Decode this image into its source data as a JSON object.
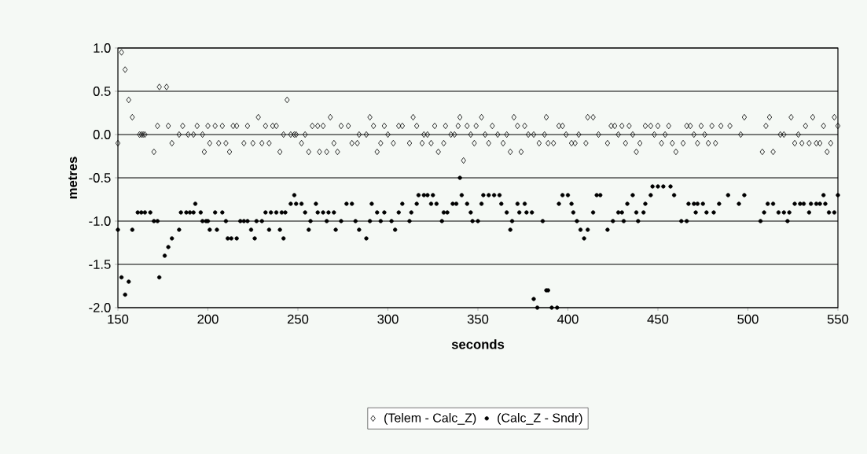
{
  "chart_data": {
    "type": "scatter",
    "xlabel": "seconds",
    "ylabel": "metres",
    "xlim": [
      150,
      550
    ],
    "xticks": [
      150,
      200,
      250,
      300,
      350,
      400,
      450,
      500,
      550
    ],
    "ylim": [
      -2.0,
      1.0
    ],
    "yticks": [
      {
        "value": -2.0,
        "label": "-2.0"
      },
      {
        "value": -1.5,
        "label": "-1.5"
      },
      {
        "value": -1.0,
        "label": "-1.0"
      },
      {
        "value": -0.5,
        "label": "-0.5"
      },
      {
        "value": 0.0,
        "label": "0.0"
      },
      {
        "value": 0.5,
        "label": "0.5"
      },
      {
        "value": 1.0,
        "label": "1.0"
      }
    ],
    "grid": "y",
    "legend": "bottom",
    "series": [
      {
        "name": "(Telem - Calc_Z)",
        "color": "#000000",
        "marker": "diamond",
        "x": [
          150,
          152,
          154,
          156,
          158,
          162,
          163,
          164,
          165,
          170,
          172,
          173,
          177,
          178,
          180,
          184,
          186,
          189,
          192,
          194,
          197,
          198,
          200,
          201,
          204,
          206,
          208,
          210,
          212,
          214,
          216,
          220,
          222,
          225,
          228,
          230,
          232,
          234,
          236,
          238,
          240,
          242,
          244,
          246,
          248,
          249,
          252,
          254,
          256,
          258,
          261,
          262,
          264,
          266,
          268,
          270,
          272,
          274,
          278,
          280,
          283,
          284,
          288,
          290,
          292,
          294,
          296,
          298,
          300,
          303,
          306,
          308,
          312,
          314,
          316,
          319,
          320,
          322,
          324,
          326,
          328,
          331,
          332,
          335,
          337,
          339,
          340,
          342,
          344,
          346,
          348,
          349,
          352,
          354,
          356,
          358,
          361,
          364,
          366,
          368,
          370,
          372,
          374,
          376,
          378,
          381,
          384,
          387,
          388,
          389,
          392,
          395,
          397,
          399,
          402,
          404,
          406,
          410,
          411,
          414,
          417,
          422,
          424,
          426,
          428,
          430,
          432,
          434,
          436,
          438,
          440,
          443,
          446,
          448,
          450,
          452,
          454,
          456,
          458,
          460,
          464,
          466,
          468,
          470,
          472,
          474,
          476,
          478,
          480,
          482,
          485,
          490,
          496,
          498,
          508,
          510,
          512,
          514,
          518,
          520,
          524,
          526,
          528,
          530,
          532,
          534,
          536,
          538,
          540,
          542,
          544,
          546,
          548,
          550
        ],
        "values": [
          -0.1,
          0.95,
          0.75,
          0.4,
          0.2,
          0,
          0,
          0,
          0,
          -0.2,
          0.1,
          0.55,
          0.55,
          0.1,
          -0.1,
          0,
          0.1,
          0,
          0,
          0.1,
          0,
          -0.2,
          0.1,
          -0.1,
          0.1,
          -0.1,
          0.1,
          -0.1,
          -0.2,
          0.1,
          0.1,
          -0.1,
          0.1,
          -0.1,
          0.2,
          -0.1,
          0.1,
          -0.1,
          0.1,
          0.1,
          -0.2,
          0,
          0.4,
          0,
          0,
          0,
          -0.1,
          0,
          -0.2,
          0.1,
          0.1,
          -0.2,
          0.1,
          -0.2,
          0.2,
          -0.1,
          -0.2,
          0.1,
          0.1,
          -0.1,
          -0.1,
          0,
          0,
          0.2,
          0.1,
          -0.2,
          -0.1,
          0.1,
          0,
          -0.1,
          0.1,
          0.1,
          -0.1,
          0.2,
          0.1,
          -0.1,
          0,
          0,
          -0.1,
          0.1,
          -0.2,
          -0.1,
          0.1,
          0,
          0,
          0.1,
          0.2,
          -0.3,
          0.1,
          0,
          -0.1,
          0.1,
          0.2,
          0,
          -0.1,
          0.1,
          0,
          -0.1,
          0,
          -0.2,
          0.2,
          0.1,
          -0.2,
          0.1,
          0,
          0,
          -0.1,
          0,
          0.2,
          -0.1,
          -0.1,
          0.1,
          0.1,
          0,
          -0.1,
          -0.1,
          0,
          -0.1,
          0.2,
          0.2,
          0,
          -0.1,
          0.1,
          0.1,
          0,
          0.1,
          -0.1,
          0.1,
          0,
          -0.2,
          -0.1,
          0.1,
          0.1,
          0,
          0.1,
          -0.1,
          0,
          0.1,
          -0.1,
          -0.2,
          -0.1,
          0.1,
          0.1,
          0,
          -0.1,
          0.1,
          0,
          -0.1,
          0.1,
          -0.1,
          0.1,
          0.1,
          0,
          0.2,
          -0.2,
          0.1,
          0.2,
          -0.2,
          0,
          0,
          0.2,
          -0.1,
          0,
          -0.1,
          0.1,
          -0.1,
          0.2,
          -0.1,
          -0.1,
          0.1,
          -0.2,
          -0.1,
          0.2,
          0.1
        ]
      },
      {
        "name": "(Calc_Z - Sndr)",
        "color": "#000000",
        "marker": "circle",
        "x": [
          150,
          152,
          154,
          156,
          158,
          161,
          163,
          165,
          168,
          170,
          172,
          173,
          176,
          178,
          180,
          184,
          185,
          188,
          190,
          192,
          193,
          196,
          197,
          199,
          200,
          201,
          204,
          205,
          208,
          210,
          211,
          213,
          216,
          218,
          220,
          222,
          224,
          226,
          227,
          230,
          232,
          234,
          235,
          238,
          240,
          241,
          242,
          243,
          246,
          248,
          249,
          252,
          254,
          256,
          257,
          260,
          261,
          264,
          266,
          267,
          270,
          271,
          274,
          277,
          280,
          282,
          284,
          288,
          290,
          291,
          294,
          296,
          298,
          302,
          304,
          306,
          308,
          312,
          313,
          316,
          317,
          320,
          322,
          324,
          325,
          327,
          330,
          331,
          333,
          336,
          338,
          340,
          341,
          344,
          346,
          347,
          350,
          352,
          353,
          356,
          359,
          362,
          363,
          366,
          368,
          369,
          372,
          373,
          376,
          377,
          380,
          381,
          383,
          386,
          388,
          389,
          391,
          394,
          395,
          397,
          400,
          402,
          403,
          405,
          407,
          409,
          411,
          414,
          416,
          418,
          422,
          425,
          428,
          430,
          431,
          433,
          436,
          438,
          439,
          442,
          443,
          446,
          447,
          450,
          453,
          457,
          459,
          463,
          466,
          467,
          470,
          471,
          472,
          475,
          477,
          481,
          484,
          489,
          495,
          498,
          507,
          509,
          511,
          514,
          517,
          520,
          522,
          523,
          526,
          529,
          531,
          534,
          535,
          538,
          540,
          542,
          543,
          545,
          548,
          550
        ],
        "values": [
          -1.1,
          -1.65,
          -1.85,
          -1.7,
          -1.1,
          -0.9,
          -0.9,
          -0.9,
          -0.9,
          -1.0,
          -1.0,
          -1.65,
          -1.4,
          -1.3,
          -1.2,
          -1.1,
          -0.9,
          -0.9,
          -0.9,
          -0.9,
          -0.8,
          -0.9,
          -1.0,
          -1.0,
          -1.0,
          -1.1,
          -0.9,
          -1.1,
          -0.9,
          -1.0,
          -1.2,
          -1.2,
          -1.2,
          -1.0,
          -1.0,
          -1.0,
          -1.1,
          -1.2,
          -1.0,
          -1.0,
          -0.9,
          -1.1,
          -0.9,
          -0.9,
          -1.1,
          -0.9,
          -1.2,
          -0.9,
          -0.8,
          -0.7,
          -0.8,
          -0.8,
          -0.9,
          -1.1,
          -1.0,
          -0.8,
          -0.9,
          -0.9,
          -1.0,
          -0.9,
          -0.9,
          -1.1,
          -1.0,
          -0.8,
          -0.8,
          -1.0,
          -1.1,
          -1.2,
          -1.0,
          -0.8,
          -0.9,
          -1.0,
          -0.9,
          -1.0,
          -1.1,
          -0.9,
          -0.8,
          -1.0,
          -0.9,
          -0.8,
          -0.7,
          -0.7,
          -0.7,
          -0.8,
          -0.7,
          -0.8,
          -1.0,
          -0.9,
          -0.9,
          -0.8,
          -0.8,
          -0.5,
          -0.7,
          -0.8,
          -0.9,
          -1.0,
          -1.0,
          -0.8,
          -0.7,
          -0.7,
          -0.7,
          -0.7,
          -0.8,
          -0.9,
          -1.1,
          -1.0,
          -0.8,
          -0.9,
          -0.8,
          -0.9,
          -0.9,
          -1.9,
          -2.0,
          -1.0,
          -1.8,
          -1.8,
          -2.0,
          -2.0,
          -0.8,
          -0.7,
          -0.7,
          -0.8,
          -0.9,
          -1.0,
          -1.1,
          -1.2,
          -1.1,
          -0.9,
          -0.7,
          -0.7,
          -1.1,
          -1.0,
          -0.9,
          -0.9,
          -1.0,
          -0.8,
          -0.7,
          -0.9,
          -1.0,
          -0.9,
          -0.8,
          -0.7,
          -0.6,
          -0.6,
          -0.6,
          -0.6,
          -0.7,
          -1.0,
          -1.0,
          -0.8,
          -0.8,
          -0.9,
          -0.8,
          -0.8,
          -0.9,
          -0.9,
          -0.8,
          -0.7,
          -0.8,
          -0.7,
          -1.0,
          -0.9,
          -0.8,
          -0.8,
          -0.9,
          -0.9,
          -1.0,
          -0.9,
          -0.8,
          -0.8,
          -0.8,
          -0.9,
          -0.8,
          -0.8,
          -0.8,
          -0.7,
          -0.8,
          -0.9,
          -0.9,
          -0.7
        ]
      }
    ]
  }
}
